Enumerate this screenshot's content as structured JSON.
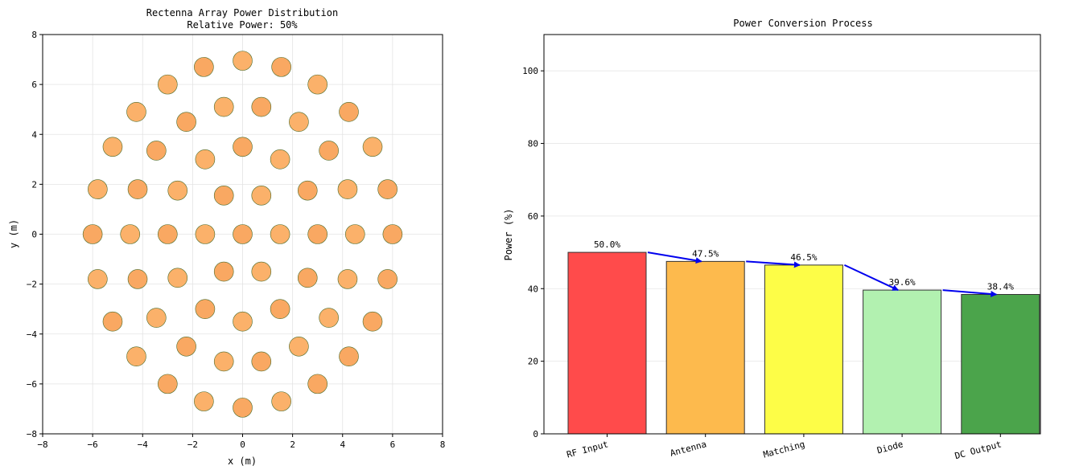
{
  "chart_data": [
    {
      "type": "scatter",
      "title": "Rectenna Array Power Distribution",
      "subtitle": "Relative Power: 50%",
      "xlabel": "x (m)",
      "ylabel": "y (m)",
      "xlim": [
        -8,
        8
      ],
      "ylim": [
        -8,
        8
      ],
      "xticks": [
        -8,
        -6,
        -4,
        -2,
        0,
        2,
        4,
        6,
        8
      ],
      "yticks": [
        -8,
        -6,
        -4,
        -2,
        0,
        2,
        4,
        6,
        8
      ],
      "grid": true,
      "marker_colors": [
        "#f9a862",
        "#fbb16a"
      ],
      "marker_edge_color": "#4b6b2a",
      "points": [
        {
          "x": -6.0,
          "y": 0.0
        },
        {
          "x": -4.5,
          "y": 0.0
        },
        {
          "x": -3.0,
          "y": 0.0
        },
        {
          "x": -1.5,
          "y": 0.0
        },
        {
          "x": 0.0,
          "y": 0.0
        },
        {
          "x": 1.5,
          "y": 0.0
        },
        {
          "x": 3.0,
          "y": 0.0
        },
        {
          "x": 4.5,
          "y": 0.0
        },
        {
          "x": 6.0,
          "y": 0.0
        },
        {
          "x": -5.8,
          "y": 1.8
        },
        {
          "x": -4.2,
          "y": 1.8
        },
        {
          "x": -2.6,
          "y": 1.75
        },
        {
          "x": -0.75,
          "y": 1.55
        },
        {
          "x": 0.75,
          "y": 1.55
        },
        {
          "x": 2.6,
          "y": 1.75
        },
        {
          "x": 4.2,
          "y": 1.8
        },
        {
          "x": 5.8,
          "y": 1.8
        },
        {
          "x": -5.8,
          "y": -1.8
        },
        {
          "x": -4.2,
          "y": -1.8
        },
        {
          "x": -2.6,
          "y": -1.75
        },
        {
          "x": -0.75,
          "y": -1.5
        },
        {
          "x": 0.75,
          "y": -1.5
        },
        {
          "x": 2.6,
          "y": -1.75
        },
        {
          "x": 4.2,
          "y": -1.8
        },
        {
          "x": 5.8,
          "y": -1.8
        },
        {
          "x": -5.2,
          "y": 3.5
        },
        {
          "x": -3.45,
          "y": 3.35
        },
        {
          "x": -1.5,
          "y": 3.0
        },
        {
          "x": 0.0,
          "y": 3.5
        },
        {
          "x": 1.5,
          "y": 3.0
        },
        {
          "x": 3.45,
          "y": 3.35
        },
        {
          "x": 5.2,
          "y": 3.5
        },
        {
          "x": -5.2,
          "y": -3.5
        },
        {
          "x": -3.45,
          "y": -3.35
        },
        {
          "x": -1.5,
          "y": -3.0
        },
        {
          "x": 0.0,
          "y": -3.5
        },
        {
          "x": 1.5,
          "y": -3.0
        },
        {
          "x": 3.45,
          "y": -3.35
        },
        {
          "x": 5.2,
          "y": -3.5
        },
        {
          "x": -4.25,
          "y": 4.9
        },
        {
          "x": -2.25,
          "y": 4.5
        },
        {
          "x": -0.75,
          "y": 5.1
        },
        {
          "x": 0.75,
          "y": 5.1
        },
        {
          "x": 2.25,
          "y": 4.5
        },
        {
          "x": 4.25,
          "y": 4.9
        },
        {
          "x": -4.25,
          "y": -4.9
        },
        {
          "x": -2.25,
          "y": -4.5
        },
        {
          "x": -0.75,
          "y": -5.1
        },
        {
          "x": 0.75,
          "y": -5.1
        },
        {
          "x": 2.25,
          "y": -4.5
        },
        {
          "x": 4.25,
          "y": -4.9
        },
        {
          "x": -3.0,
          "y": 6.0
        },
        {
          "x": -1.55,
          "y": 6.7
        },
        {
          "x": 0.0,
          "y": 6.95
        },
        {
          "x": 1.55,
          "y": 6.7
        },
        {
          "x": 3.0,
          "y": 6.0
        },
        {
          "x": -3.0,
          "y": -6.0
        },
        {
          "x": -1.55,
          "y": -6.7
        },
        {
          "x": 0.0,
          "y": -6.95
        },
        {
          "x": 1.55,
          "y": -6.7
        },
        {
          "x": 3.0,
          "y": -6.0
        }
      ]
    },
    {
      "type": "bar",
      "title": "Power Conversion Process",
      "xlabel": "",
      "ylabel": "Power (%)",
      "ylim": [
        0,
        110
      ],
      "yticks": [
        0,
        20,
        40,
        60,
        80,
        100
      ],
      "grid": true,
      "categories": [
        "RF Input",
        "Antenna",
        "Matching",
        "Diode",
        "DC Output"
      ],
      "values": [
        50.0,
        47.5,
        46.5,
        39.6,
        38.4
      ],
      "value_labels": [
        "50.0%",
        "47.5%",
        "46.5%",
        "39.6%",
        "38.4%"
      ],
      "colors": [
        "#ff4b4b",
        "#fdba4d",
        "#fdfd47",
        "#b2f1b0",
        "#4ba44b"
      ],
      "arrow_color": "#0000ee",
      "arrows": "between consecutive stages"
    }
  ]
}
